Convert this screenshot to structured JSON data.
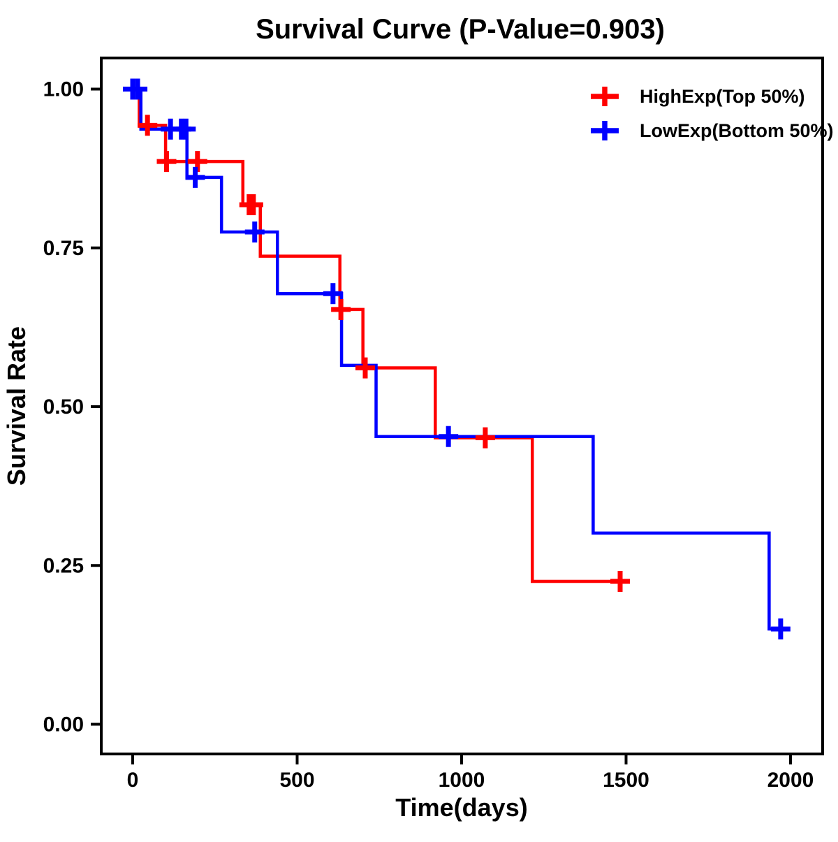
{
  "page": {
    "background": "#FFFFFF"
  },
  "chart_data": {
    "type": "line",
    "variant": "kaplan_meier_step_curve",
    "title": "Survival Curve (P-Value=0.903)",
    "p_value": "0.903",
    "xlabel": "Time(days)",
    "ylabel": "Survival Rate",
    "xlim": [
      0,
      2000
    ],
    "ylim": [
      0.0,
      1.0
    ],
    "grid": false,
    "legend_position": "top-right",
    "axis_color": "#000000",
    "x_ticks": [
      {
        "label": "0",
        "value": 0
      },
      {
        "label": "500",
        "value": 500
      },
      {
        "label": "1000",
        "value": 1000
      },
      {
        "label": "1500",
        "value": 1500
      },
      {
        "label": "2000",
        "value": 2000
      }
    ],
    "y_ticks": [
      {
        "label": "0.00",
        "value": 0.0
      },
      {
        "label": "0.25",
        "value": 0.25
      },
      {
        "label": "0.50",
        "value": 0.5
      },
      {
        "label": "0.75",
        "value": 0.75
      },
      {
        "label": "1.00",
        "value": 1.0
      }
    ],
    "series": [
      {
        "name": "HighExp(Top 50%)",
        "color": "#FF0000",
        "steps": [
          [
            0,
            1.0
          ],
          [
            20,
            0.943
          ],
          [
            100,
            0.886
          ],
          [
            335,
            0.818
          ],
          [
            388,
            0.737
          ],
          [
            630,
            0.653
          ],
          [
            700,
            0.561
          ],
          [
            920,
            0.451
          ],
          [
            1215,
            0.225
          ]
        ],
        "end_time": 1482,
        "censor_marks": [
          [
            45,
            0.943
          ],
          [
            103,
            0.886
          ],
          [
            197,
            0.886
          ],
          [
            354,
            0.818
          ],
          [
            367,
            0.818
          ],
          [
            633,
            0.653
          ],
          [
            707,
            0.561
          ],
          [
            1072,
            0.451
          ],
          [
            1482,
            0.225
          ]
        ]
      },
      {
        "name": "LowExp(Bottom 50%)",
        "color": "#0000FF",
        "steps": [
          [
            0,
            1.0
          ],
          [
            25,
            0.937
          ],
          [
            165,
            0.861
          ],
          [
            270,
            0.775
          ],
          [
            440,
            0.678
          ],
          [
            635,
            0.565
          ],
          [
            740,
            0.453
          ],
          [
            1400,
            0.301
          ],
          [
            1935,
            0.15
          ]
        ],
        "end_time": 1970,
        "censor_marks": [
          [
            0,
            1.0
          ],
          [
            15,
            1.0
          ],
          [
            115,
            0.937
          ],
          [
            148,
            0.937
          ],
          [
            162,
            0.937
          ],
          [
            190,
            0.861
          ],
          [
            371,
            0.775
          ],
          [
            609,
            0.678
          ],
          [
            960,
            0.453
          ],
          [
            1970,
            0.15
          ]
        ]
      }
    ]
  }
}
